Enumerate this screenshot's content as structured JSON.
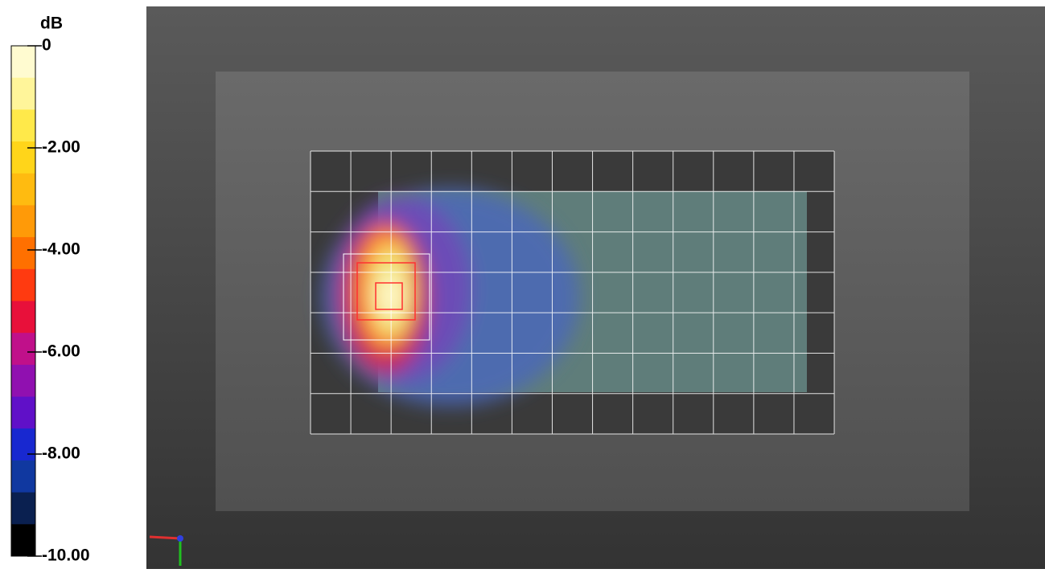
{
  "colorbar": {
    "unit": "dB",
    "range": [
      -10,
      0
    ],
    "ticks": [
      0,
      {
        "value": -2,
        "label": "-2.00"
      },
      {
        "value": -4,
        "label": "-4.00"
      },
      {
        "value": -6,
        "label": "-6.00"
      },
      {
        "value": -8,
        "label": "-8.00"
      },
      {
        "value": -10,
        "label": "-10.00"
      }
    ],
    "colors": [
      "#fffbd0",
      "#fff59a",
      "#ffe94a",
      "#ffd51a",
      "#ffbb10",
      "#ff9a08",
      "#ff7000",
      "#ff3a10",
      "#e8103a",
      "#c0108a",
      "#9010b0",
      "#6010c8",
      "#1828d0",
      "#1038a0",
      "#0a2050",
      "#000000"
    ]
  }
}
